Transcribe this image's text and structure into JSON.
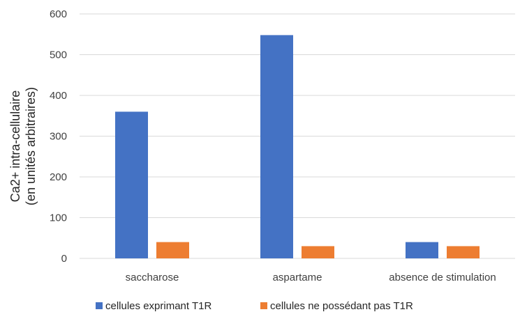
{
  "chart_data": {
    "type": "bar",
    "categories": [
      "saccharose",
      "aspartame",
      "absence de stimulation"
    ],
    "series": [
      {
        "name": "cellules exprimant T1R",
        "values": [
          360,
          548,
          40
        ]
      },
      {
        "name": "cellules ne possédant pas T1R",
        "values": [
          40,
          30,
          30
        ]
      }
    ],
    "ylabel_line1": "Ca2+ intra-cellulaire",
    "ylabel_line2": "(en unités arbitraires)",
    "ylim": [
      0,
      600
    ],
    "yticks": [
      0,
      100,
      200,
      300,
      400,
      500,
      600
    ],
    "grid": true,
    "legend_position": "bottom",
    "colors": [
      "#4472C4",
      "#ED7D31"
    ],
    "gridline_color": "#D9D9D9"
  }
}
